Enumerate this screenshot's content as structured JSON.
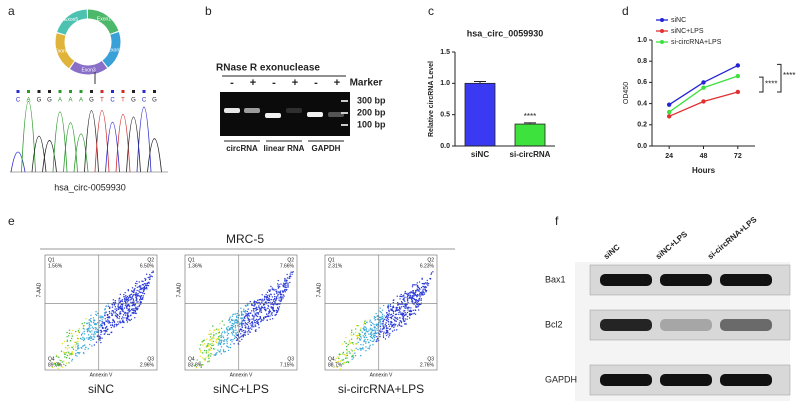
{
  "panel_labels": [
    "a",
    "b",
    "c",
    "d",
    "e",
    "f"
  ],
  "panel_a": {
    "exons": [
      "Exon1",
      "Exon2",
      "Exon3",
      "Exon4",
      "Exon5"
    ],
    "sequence": [
      "C",
      "A",
      "G",
      "G",
      "A",
      "A",
      "A",
      "G",
      "T",
      "C",
      "T",
      "G",
      "C",
      "G"
    ],
    "caption": "hsa_circ-0059930"
  },
  "panel_b": {
    "title": "RNase R exonuclease",
    "signs": [
      "-",
      "+",
      "-",
      "+",
      "-",
      "+"
    ],
    "marker": "Marker",
    "sizes": [
      "300 bp",
      "200 bp",
      "100 bp"
    ],
    "lanes": [
      "circRNA",
      "linear RNA",
      "GAPDH"
    ]
  },
  "chart_data": [
    {
      "type": "bar",
      "title": "hsa_circ_0059930",
      "y_label": "Relative circRNA Level",
      "categories": [
        "siNC",
        "si-circRNA"
      ],
      "values": [
        1.0,
        0.35
      ],
      "errors": [
        0.03,
        0.02
      ],
      "colors": [
        "#3a3af2",
        "#3de23d"
      ],
      "ylim": [
        0,
        1.5
      ],
      "yticks": [
        {
          "value": 0,
          "label": "0.0"
        },
        0.5,
        {
          "value": 1,
          "label": "1.0"
        },
        1.5
      ],
      "annotations": [
        "****"
      ]
    },
    {
      "type": "line",
      "x_label": "Hours",
      "y_label": "OD450",
      "x": [
        24,
        48,
        72
      ],
      "xlim": [
        12,
        84
      ],
      "xticks": [
        24,
        48,
        72
      ],
      "ylim": [
        0,
        1
      ],
      "yticks": [
        {
          "value": 0,
          "label": "0.0"
        },
        0.2,
        0.4,
        0.6,
        0.8,
        {
          "value": 1,
          "label": "1.0"
        }
      ],
      "series": [
        {
          "name": "siNC",
          "color": "#2323d8",
          "values": [
            0.39,
            0.6,
            0.76
          ]
        },
        {
          "name": "siNC+LPS",
          "color": "#e03030",
          "values": [
            0.28,
            0.42,
            0.51
          ]
        },
        {
          "name": "si-circRNA+LPS",
          "color": "#3ee03e",
          "values": [
            0.32,
            0.55,
            0.66
          ]
        }
      ],
      "annotations": [
        "****",
        "****"
      ]
    }
  ],
  "panel_e": {
    "title": "MRC-5",
    "x_axis": "Annexin V",
    "y_axis": "7-AAD",
    "plots": [
      {
        "label": "siNC",
        "quadrants": [
          {
            "name": "Q1",
            "value": "1.56%"
          },
          {
            "name": "Q2",
            "value": "6.50%"
          },
          {
            "name": "Q4",
            "value": "89.0%"
          },
          {
            "name": "Q3",
            "value": "2.96%"
          }
        ]
      },
      {
        "label": "siNC+LPS",
        "quadrants": [
          {
            "name": "Q1",
            "value": "1.36%"
          },
          {
            "name": "Q2",
            "value": "7.66%"
          },
          {
            "name": "Q4",
            "value": "83.8%"
          },
          {
            "name": "Q3",
            "value": "7.15%"
          }
        ]
      },
      {
        "label": "si-circRNA+LPS",
        "quadrants": [
          {
            "name": "Q1",
            "value": "2.31%"
          },
          {
            "name": "Q2",
            "value": "6.23%"
          },
          {
            "name": "Q4",
            "value": "88.7%"
          },
          {
            "name": "Q3",
            "value": "2.76%"
          }
        ]
      }
    ]
  },
  "panel_f": {
    "lanes": [
      "siNC",
      "siNC+LPS",
      "si-circRNA+LPS"
    ],
    "proteins": [
      "Bax1",
      "Bcl2",
      "GAPDH"
    ]
  }
}
